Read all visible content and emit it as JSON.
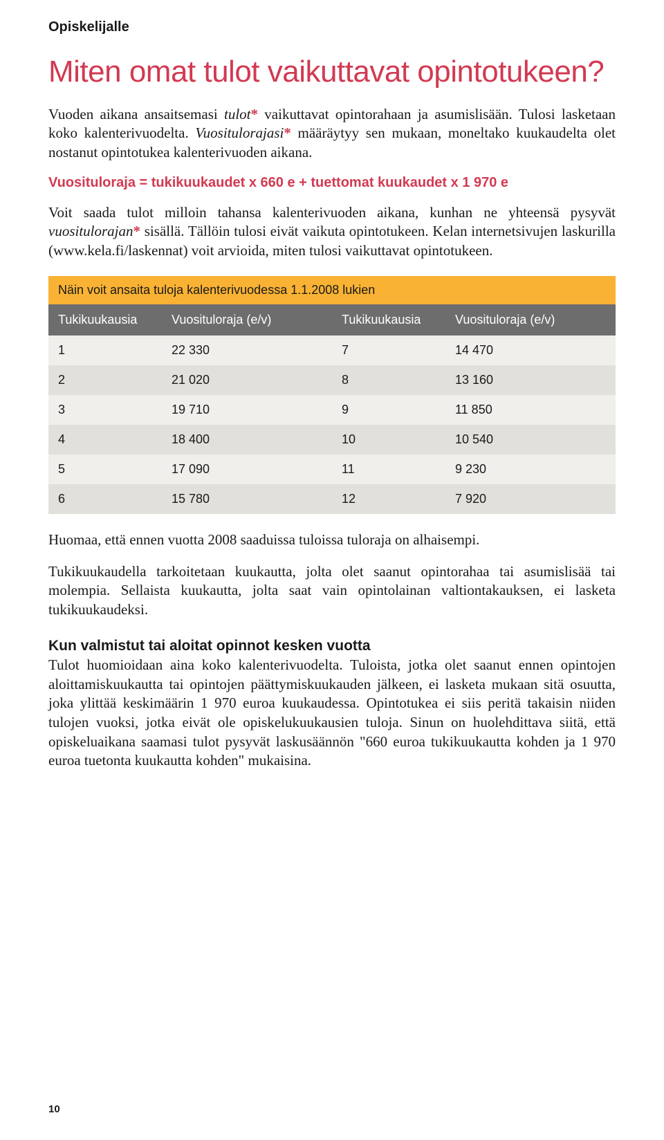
{
  "header_label": "Opiskelijalle",
  "title": "Miten omat tulot vaikuttavat opintotukeen?",
  "p1_a": "Vuoden aikana ansaitsemasi ",
  "p1_i1": "tulot",
  "p1_b": " vaikuttavat opintorahaan ja asumislisään. Tulosi lasketaan koko kalenterivuodelta. ",
  "p1_i2": "Vuositulorajasi",
  "p1_c": " määräytyy sen mukaan, moneltako kuukaudelta olet nostanut opintotukea kalenterivuoden aikana.",
  "formula": "Vuosituloraja = tukikuukaudet x 660 e + tuettomat kuukaudet x 1 970 e",
  "p2_a": "Voit saada tulot milloin tahansa kalenterivuoden aikana, kunhan ne yhteensä pysyvät ",
  "p2_i1": "vuositulorajan",
  "p2_b": " sisällä. Tällöin tulosi eivät vaikuta opintotukeen. Kelan internetsivujen laskurilla (www.kela.fi/laskennat) voit arvioida, miten tulosi vaikuttavat opintotukeen.",
  "table": {
    "title": "Näin voit ansaita tuloja kalenterivuodessa 1.1.2008 lukien",
    "headers": [
      "Tukikuukausia",
      "Vuosituloraja (e/v)",
      "Tukikuukausia",
      "Vuosituloraja (e/v)"
    ],
    "rows": [
      [
        "1",
        "22 330",
        "7",
        "14 470"
      ],
      [
        "2",
        "21 020",
        "8",
        "13 160"
      ],
      [
        "3",
        "19 710",
        "9",
        "11 850"
      ],
      [
        "4",
        "18 400",
        "10",
        "10 540"
      ],
      [
        "5",
        "17 090",
        "11",
        "9 230"
      ],
      [
        "6",
        "15 780",
        "12",
        "7 920"
      ]
    ],
    "colors": {
      "title_bg": "#f9b233",
      "header_bg": "#6d6d6d",
      "header_fg": "#ffffff",
      "row_odd_bg": "#f0efec",
      "row_even_bg": "#e2e0db"
    }
  },
  "p3": "Huomaa, että ennen vuotta 2008 saaduissa tuloissa tuloraja on alhaisempi.",
  "p4": "Tukikuukaudella tarkoitetaan kuukautta, jolta olet saanut opintorahaa tai asumislisää tai molempia. Sellaista kuukautta, jolta saat vain opintolainan valtiontakauksen, ei lasketa tukikuukaudeksi.",
  "subhead": "Kun valmistut tai aloitat opinnot kesken vuotta",
  "p5": "Tulot huomioidaan aina koko kalenterivuodelta. Tuloista, jotka olet saanut ennen opintojen aloittamiskuukautta tai opintojen päättymiskuukauden jälkeen, ei lasketa mukaan sitä osuutta, joka ylittää keskimäärin 1 970 euroa kuukaudessa. Opintotukea ei siis peritä takaisin niiden tulojen vuoksi, jotka eivät ole opiskelukuukausien tuloja. Sinun on huolehdittava siitä, että opiskeluaikana saamasi tulot pysyvät laskusäännön \"660 euroa tukikuukautta kohden ja 1 970 euroa tuetonta kuukautta kohden\" mukaisina.",
  "page_number": "10",
  "accent_color": "#d23a52"
}
